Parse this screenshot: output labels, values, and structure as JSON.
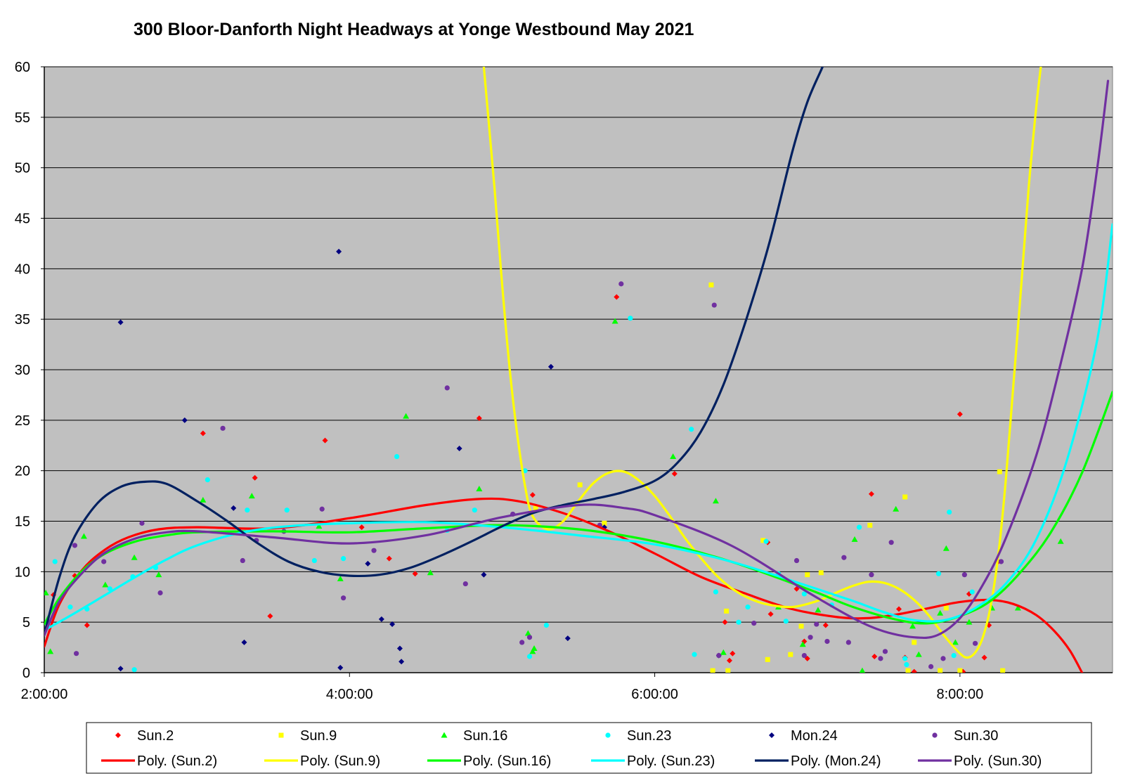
{
  "chart_data": {
    "type": "scatter",
    "title": "300 Bloor-Danforth Night Headways at Yonge Westbound May 2021",
    "xlabel": "",
    "ylabel": "",
    "xlim": [
      2.0,
      9.0
    ],
    "ylim": [
      0,
      60
    ],
    "yticks": [
      0,
      5,
      10,
      15,
      20,
      25,
      30,
      35,
      40,
      45,
      50,
      55,
      60
    ],
    "ytick_labels": [
      "0",
      "5",
      "10",
      "15",
      "20",
      "25",
      "30",
      "35",
      "40",
      "45",
      "50",
      "55",
      "60"
    ],
    "xticks": [
      2,
      4,
      6,
      8
    ],
    "xtick_labels": [
      "2:00:00",
      "4:00:00",
      "6:00:00",
      "8:00:00"
    ],
    "grid": true,
    "plot_background": "#c0c0c0",
    "legend_position": "bottom",
    "series": [
      {
        "name": "Sun.2",
        "color": "#ff0000",
        "marker": "diamond",
        "x": [
          2.06,
          2.2,
          2.28,
          3.04,
          3.38,
          3.48,
          3.84,
          4.08,
          4.26,
          4.43,
          4.85,
          5.2,
          5.75,
          6.13,
          6.46,
          6.49,
          6.51,
          6.74,
          6.76,
          6.93,
          6.98,
          7.0,
          7.12,
          7.42,
          7.44,
          7.6,
          7.64,
          7.7,
          8.0,
          8.02,
          8.06,
          8.16,
          8.19,
          8.25
        ],
        "y": [
          7.7,
          9.6,
          4.7,
          23.7,
          19.3,
          5.6,
          23.0,
          14.4,
          11.3,
          9.8,
          25.2,
          17.6,
          37.2,
          19.7,
          5.0,
          1.2,
          1.9,
          12.9,
          5.8,
          8.3,
          3.1,
          1.4,
          4.7,
          17.7,
          1.6,
          6.3,
          1.5,
          0.1,
          25.6,
          0.1,
          7.8,
          1.5,
          4.7,
          11.0
        ]
      },
      {
        "name": "Sun.9",
        "color": "#ffff00",
        "marker": "square",
        "x": [
          5.22,
          5.51,
          5.67,
          6.37,
          6.38,
          6.47,
          6.48,
          6.71,
          6.74,
          6.89,
          6.96,
          7.0,
          7.09,
          7.41,
          7.64,
          7.66,
          7.7,
          7.87,
          7.91,
          8.0,
          8.26,
          8.28
        ],
        "y": [
          16.3,
          18.6,
          14.8,
          38.4,
          0.2,
          6.1,
          0.2,
          13.1,
          1.3,
          1.8,
          4.6,
          9.7,
          9.9,
          14.6,
          17.4,
          0.2,
          3.0,
          0.2,
          6.4,
          0.2,
          19.9,
          0.2
        ]
      },
      {
        "name": "Sun.16",
        "color": "#00ff00",
        "marker": "triangle",
        "x": [
          2.01,
          2.04,
          2.26,
          2.4,
          2.59,
          2.75,
          3.04,
          3.36,
          3.8,
          3.94,
          4.37,
          4.53,
          4.85,
          5.17,
          5.2,
          5.21,
          5.74,
          6.12,
          6.4,
          6.45,
          6.81,
          6.97,
          7.07,
          7.31,
          7.36,
          7.58,
          7.69,
          7.73,
          7.87,
          7.91,
          7.97,
          8.06,
          8.21,
          8.38,
          8.66
        ],
        "y": [
          7.9,
          2.1,
          13.5,
          8.7,
          11.4,
          9.7,
          17.1,
          17.5,
          14.5,
          9.3,
          25.4,
          9.9,
          18.2,
          3.9,
          2.1,
          2.4,
          34.8,
          21.4,
          17.0,
          2.0,
          6.5,
          2.8,
          6.2,
          13.2,
          0.2,
          16.2,
          4.6,
          1.8,
          5.9,
          12.3,
          3.0,
          5.0,
          6.4,
          6.4,
          13.0
        ]
      },
      {
        "name": "Sun.23",
        "color": "#00ffff",
        "marker": "circle",
        "x": [
          2.07,
          2.17,
          2.28,
          2.43,
          2.58,
          2.59,
          2.73,
          3.07,
          3.33,
          3.59,
          3.77,
          3.96,
          4.31,
          4.64,
          4.82,
          5.15,
          5.18,
          5.29,
          5.84,
          6.24,
          6.26,
          6.4,
          6.55,
          6.61,
          6.73,
          6.81,
          6.86,
          6.98,
          7.16,
          7.34,
          7.64,
          7.65,
          7.86,
          7.93,
          7.96,
          8.08
        ],
        "y": [
          11.0,
          6.5,
          6.3,
          8.3,
          9.5,
          0.3,
          10.4,
          19.1,
          16.1,
          16.1,
          11.1,
          11.3,
          21.4,
          14.1,
          16.1,
          20.0,
          1.6,
          4.7,
          35.1,
          24.1,
          1.8,
          8.0,
          5.0,
          6.5,
          13.0,
          9.8,
          5.1,
          7.8,
          6.7,
          14.4,
          1.4,
          0.8,
          9.8,
          15.9,
          1.7,
          8.0
        ]
      },
      {
        "name": "Mon.24",
        "color": "#000080",
        "marker": "diamond",
        "x": [
          2.5,
          2.5,
          2.92,
          3.24,
          3.31,
          3.93,
          3.94,
          4.12,
          4.21,
          4.28,
          4.33,
          4.34,
          4.72,
          4.88,
          5.32,
          5.43,
          5.67,
          6.42
        ],
        "y": [
          34.7,
          0.4,
          25.0,
          16.3,
          3.0,
          41.7,
          0.5,
          10.8,
          5.3,
          4.8,
          2.4,
          1.1,
          22.2,
          9.7,
          30.3,
          3.4,
          14.4,
          1.7
        ]
      },
      {
        "name": "Sun.30",
        "color": "#7030a0",
        "marker": "circle",
        "x": [
          2.2,
          2.21,
          2.39,
          2.64,
          2.76,
          3.17,
          3.3,
          3.39,
          3.57,
          3.82,
          3.96,
          4.16,
          4.64,
          4.76,
          5.07,
          5.13,
          5.18,
          5.64,
          5.78,
          6.39,
          6.42,
          6.65,
          6.93,
          6.98,
          7.02,
          7.06,
          7.13,
          7.24,
          7.27,
          7.42,
          7.48,
          7.51,
          7.55,
          7.81,
          7.89,
          8.03,
          8.1,
          8.27
        ],
        "y": [
          12.6,
          1.9,
          11.0,
          14.8,
          7.9,
          24.2,
          11.1,
          13.1,
          14.0,
          16.2,
          7.4,
          12.1,
          28.2,
          8.8,
          15.7,
          3.0,
          3.5,
          14.6,
          38.5,
          36.4,
          1.7,
          4.9,
          11.1,
          1.7,
          3.5,
          4.8,
          3.1,
          11.4,
          3.0,
          9.7,
          1.4,
          2.1,
          12.9,
          0.6,
          1.4,
          9.7,
          2.9,
          11.0
        ]
      }
    ],
    "trendlines": [
      {
        "name": "Poly. (Sun.2)",
        "color": "#ff0000",
        "x": [
          2.0,
          2.1,
          2.25,
          2.4,
          2.55,
          2.75,
          3.0,
          3.5,
          4.0,
          4.5,
          4.85,
          5.1,
          5.4,
          5.7,
          6.0,
          6.3,
          6.6,
          6.9,
          7.2,
          7.4,
          7.6,
          7.8,
          8.0,
          8.2,
          8.35,
          8.5,
          8.62,
          8.72,
          8.8
        ],
        "y": [
          2.6,
          6.8,
          10.2,
          12.2,
          13.4,
          14.2,
          14.4,
          14.3,
          15.3,
          16.6,
          17.2,
          17.0,
          15.8,
          14.0,
          11.8,
          9.5,
          7.8,
          6.3,
          5.5,
          5.4,
          5.8,
          6.4,
          7.0,
          7.2,
          6.8,
          5.7,
          4.1,
          2.2,
          0.0
        ]
      },
      {
        "name": "Poly. (Sun.9)",
        "color": "#ffff00",
        "x": [
          4.88,
          4.95,
          5.0,
          5.05,
          5.1,
          5.15,
          5.2,
          5.3,
          5.4,
          5.5,
          5.6,
          5.7,
          5.8,
          5.9,
          6.0,
          6.1,
          6.2,
          6.3,
          6.4,
          6.5,
          6.6,
          6.7,
          6.8,
          6.9,
          7.0,
          7.1,
          7.2,
          7.3,
          7.4,
          7.5,
          7.6,
          7.7,
          7.8,
          7.9,
          8.0,
          8.05,
          8.1,
          8.15,
          8.2,
          8.25,
          8.3,
          8.35,
          8.4,
          8.45,
          8.5,
          8.53
        ],
        "y": [
          60.0,
          48.0,
          38.5,
          30.0,
          23.5,
          18.5,
          15.5,
          14.2,
          15.0,
          17.0,
          18.8,
          19.8,
          19.9,
          19.0,
          17.5,
          15.5,
          13.3,
          11.4,
          9.7,
          8.4,
          7.5,
          6.9,
          6.6,
          6.5,
          6.8,
          7.3,
          8.0,
          8.6,
          9.0,
          8.9,
          8.3,
          7.2,
          5.6,
          3.6,
          1.9,
          1.5,
          2.0,
          3.5,
          6.5,
          11.5,
          19.0,
          28.5,
          38.0,
          48.0,
          56.0,
          60.0
        ]
      },
      {
        "name": "Poly. (Sun.16)",
        "color": "#00ff00",
        "x": [
          2.0,
          2.1,
          2.25,
          2.4,
          2.6,
          2.8,
          3.0,
          3.5,
          4.0,
          4.5,
          5.0,
          5.5,
          6.0,
          6.5,
          7.0,
          7.3,
          7.6,
          7.8,
          8.0,
          8.2,
          8.4,
          8.6,
          8.8,
          9.0
        ],
        "y": [
          4.8,
          7.4,
          10.1,
          11.8,
          13.0,
          13.6,
          13.9,
          14.0,
          13.9,
          14.3,
          14.6,
          14.2,
          13.0,
          11.0,
          8.3,
          6.5,
          5.2,
          4.9,
          5.6,
          7.1,
          10.0,
          14.0,
          19.8,
          27.8
        ]
      },
      {
        "name": "Poly. (Sun.23)",
        "color": "#00ffff",
        "x": [
          2.0,
          2.2,
          2.4,
          2.6,
          2.8,
          3.0,
          3.3,
          3.6,
          4.0,
          4.5,
          5.0,
          5.5,
          6.0,
          6.5,
          7.0,
          7.3,
          7.5,
          7.7,
          7.9,
          8.1,
          8.3,
          8.5,
          8.7,
          8.9,
          9.0
        ],
        "y": [
          4.2,
          5.9,
          7.7,
          9.5,
          11.2,
          12.6,
          13.9,
          14.5,
          14.8,
          14.9,
          14.4,
          13.6,
          12.7,
          11.0,
          8.6,
          7.1,
          6.0,
          5.2,
          5.2,
          6.4,
          8.8,
          13.2,
          21.0,
          33.0,
          44.4
        ]
      },
      {
        "name": "Poly. (Mon.24)",
        "color": "#002060",
        "x": [
          2.0,
          2.1,
          2.2,
          2.35,
          2.5,
          2.65,
          2.8,
          3.0,
          3.2,
          3.4,
          3.6,
          3.8,
          4.0,
          4.2,
          4.4,
          4.6,
          4.8,
          5.0,
          5.2,
          5.4,
          5.6,
          5.8,
          6.0,
          6.15,
          6.3,
          6.45,
          6.6,
          6.75,
          6.9,
          7.0,
          7.1,
          7.14
        ],
        "y": [
          3.8,
          9.5,
          13.5,
          16.8,
          18.4,
          18.9,
          18.7,
          17.0,
          15.0,
          12.8,
          11.0,
          10.0,
          9.6,
          9.7,
          10.4,
          11.6,
          13.0,
          14.5,
          15.8,
          16.6,
          17.2,
          17.9,
          19.0,
          20.8,
          23.8,
          28.5,
          35.0,
          42.5,
          51.5,
          56.5,
          60.0,
          61.5
        ]
      },
      {
        "name": "Poly. (Sun.30)",
        "color": "#7030a0",
        "x": [
          2.0,
          2.1,
          2.25,
          2.4,
          2.6,
          2.8,
          3.0,
          3.5,
          4.0,
          4.5,
          5.0,
          5.5,
          5.8,
          6.0,
          6.5,
          7.0,
          7.3,
          7.5,
          7.7,
          7.85,
          8.0,
          8.15,
          8.3,
          8.5,
          8.65,
          8.8,
          8.9,
          8.97
        ],
        "y": [
          3.7,
          7.1,
          9.9,
          11.9,
          13.3,
          13.9,
          14.0,
          13.4,
          12.8,
          13.6,
          15.4,
          16.6,
          16.3,
          15.6,
          12.6,
          8.0,
          5.4,
          4.1,
          3.5,
          3.7,
          5.4,
          8.7,
          13.3,
          21.5,
          30.0,
          40.0,
          50.0,
          58.6
        ]
      }
    ],
    "legend": [
      {
        "label": "Sun.2",
        "kind": "marker",
        "marker": "diamond",
        "color": "#ff0000"
      },
      {
        "label": "Sun.9",
        "kind": "marker",
        "marker": "square",
        "color": "#ffff00"
      },
      {
        "label": "Sun.16",
        "kind": "marker",
        "marker": "triangle",
        "color": "#00ff00"
      },
      {
        "label": "Sun.23",
        "kind": "marker",
        "marker": "circle",
        "color": "#00ffff"
      },
      {
        "label": "Mon.24",
        "kind": "marker",
        "marker": "diamond",
        "color": "#000080"
      },
      {
        "label": "Sun.30",
        "kind": "marker",
        "marker": "circle",
        "color": "#7030a0"
      },
      {
        "label": "Poly. (Sun.2)",
        "kind": "line",
        "color": "#ff0000"
      },
      {
        "label": "Poly. (Sun.9)",
        "kind": "line",
        "color": "#ffff00"
      },
      {
        "label": "Poly. (Sun.16)",
        "kind": "line",
        "color": "#00ff00"
      },
      {
        "label": "Poly. (Sun.23)",
        "kind": "line",
        "color": "#00ffff"
      },
      {
        "label": "Poly. (Mon.24)",
        "kind": "line",
        "color": "#002060"
      },
      {
        "label": "Poly. (Sun.30)",
        "kind": "line",
        "color": "#7030a0"
      }
    ]
  }
}
